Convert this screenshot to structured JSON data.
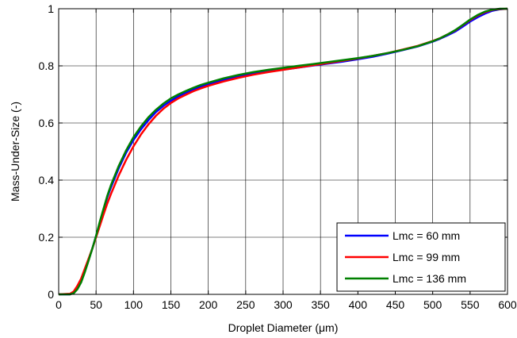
{
  "chart_data": {
    "type": "line",
    "title": "",
    "xlabel": "Droplet Diameter (μm)",
    "ylabel": "Mass-Under-Size (-)",
    "xlim": [
      0,
      600
    ],
    "ylim": [
      0,
      1
    ],
    "xticks": [
      0,
      50,
      100,
      150,
      200,
      250,
      300,
      350,
      400,
      450,
      500,
      550,
      600
    ],
    "yticks": [
      0,
      0.2,
      0.4,
      0.6,
      0.8,
      1
    ],
    "ytick_labels": [
      "0",
      "0.2",
      "0.4",
      "0.6",
      "0.8",
      "1"
    ],
    "grid": true,
    "legend_position": "bottom-right",
    "series": [
      {
        "name": "Lmc = 60 mm",
        "color": "#0000ff",
        "x": [
          0,
          15,
          20,
          25,
          30,
          35,
          40,
          45,
          50,
          55,
          60,
          65,
          70,
          80,
          90,
          100,
          110,
          120,
          130,
          140,
          150,
          160,
          170,
          180,
          190,
          200,
          220,
          240,
          260,
          280,
          300,
          320,
          340,
          360,
          380,
          400,
          420,
          440,
          460,
          480,
          500,
          510,
          520,
          530,
          540,
          550,
          560,
          570,
          580,
          590,
          600
        ],
        "y": [
          0,
          0,
          0.005,
          0.02,
          0.045,
          0.08,
          0.12,
          0.16,
          0.205,
          0.25,
          0.295,
          0.34,
          0.375,
          0.44,
          0.495,
          0.54,
          0.578,
          0.61,
          0.638,
          0.66,
          0.678,
          0.693,
          0.706,
          0.717,
          0.727,
          0.735,
          0.75,
          0.762,
          0.772,
          0.78,
          0.787,
          0.794,
          0.801,
          0.808,
          0.815,
          0.823,
          0.832,
          0.843,
          0.855,
          0.868,
          0.885,
          0.895,
          0.907,
          0.92,
          0.937,
          0.955,
          0.97,
          0.983,
          0.993,
          0.998,
          1
        ]
      },
      {
        "name": "Lmc = 99 mm",
        "color": "#ff0000",
        "x": [
          0,
          15,
          20,
          25,
          30,
          35,
          40,
          45,
          50,
          55,
          60,
          65,
          70,
          80,
          90,
          100,
          110,
          120,
          130,
          140,
          150,
          160,
          170,
          180,
          190,
          200,
          220,
          240,
          260,
          280,
          300,
          320,
          340,
          360,
          380,
          400,
          420,
          440,
          460,
          480,
          500,
          510,
          520,
          530,
          540,
          550,
          560,
          570,
          580,
          590,
          600
        ],
        "y": [
          0,
          0.002,
          0.01,
          0.03,
          0.055,
          0.09,
          0.125,
          0.16,
          0.2,
          0.24,
          0.28,
          0.318,
          0.352,
          0.415,
          0.47,
          0.518,
          0.56,
          0.595,
          0.625,
          0.65,
          0.67,
          0.686,
          0.699,
          0.711,
          0.721,
          0.73,
          0.745,
          0.758,
          0.769,
          0.778,
          0.786,
          0.794,
          0.802,
          0.81,
          0.818,
          0.826,
          0.835,
          0.845,
          0.857,
          0.87,
          0.887,
          0.897,
          0.91,
          0.924,
          0.942,
          0.96,
          0.976,
          0.988,
          0.996,
          0.999,
          1
        ]
      },
      {
        "name": "Lmc = 136 mm",
        "color": "#008000",
        "x": [
          0,
          15,
          20,
          25,
          30,
          35,
          40,
          45,
          50,
          55,
          60,
          65,
          70,
          80,
          90,
          100,
          110,
          120,
          130,
          140,
          150,
          160,
          170,
          180,
          190,
          200,
          220,
          240,
          260,
          280,
          300,
          320,
          340,
          360,
          380,
          400,
          420,
          440,
          460,
          480,
          500,
          510,
          520,
          530,
          540,
          550,
          560,
          570,
          580,
          590,
          600
        ],
        "y": [
          0,
          0,
          0.004,
          0.018,
          0.042,
          0.078,
          0.118,
          0.16,
          0.205,
          0.255,
          0.3,
          0.345,
          0.383,
          0.448,
          0.503,
          0.55,
          0.588,
          0.62,
          0.646,
          0.668,
          0.686,
          0.7,
          0.712,
          0.723,
          0.733,
          0.741,
          0.756,
          0.768,
          0.778,
          0.786,
          0.793,
          0.8,
          0.806,
          0.813,
          0.82,
          0.827,
          0.835,
          0.845,
          0.856,
          0.869,
          0.886,
          0.897,
          0.91,
          0.925,
          0.943,
          0.962,
          0.978,
          0.99,
          0.997,
          1,
          1
        ]
      }
    ]
  }
}
